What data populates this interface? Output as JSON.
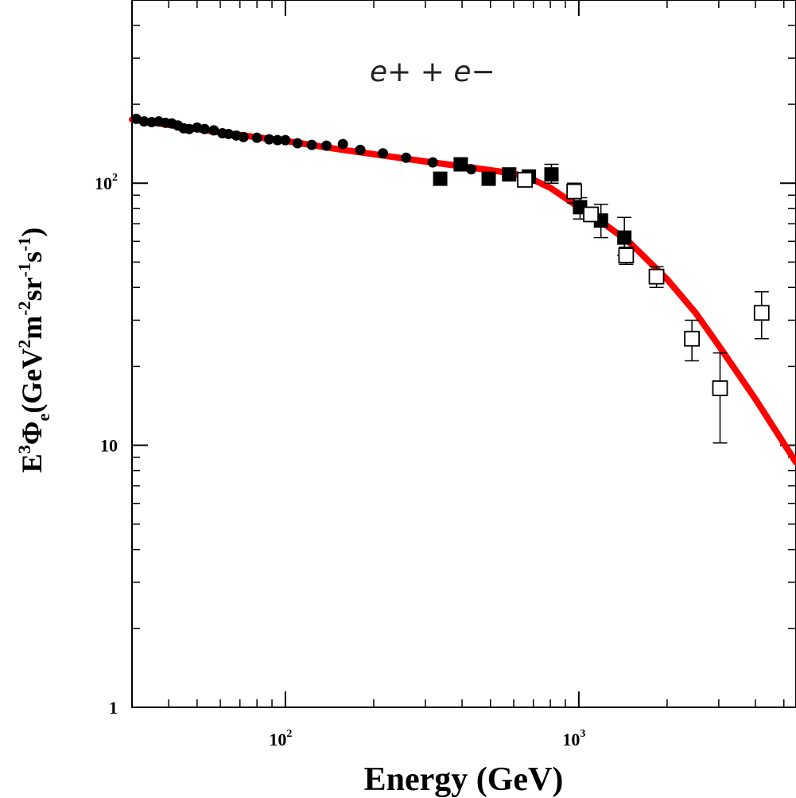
{
  "chart_data": {
    "type": "scatter",
    "title": "",
    "annotation": "e+ + e−",
    "xlabel": "Energy (GeV)",
    "ylabel": {
      "base": "E",
      "sup1": "3",
      "phi": "Φ",
      "sub": "e",
      "units_open": "(GeV",
      "sup2": "2",
      "m": "m",
      "sup3": "-2",
      "sr": "sr",
      "sup4": "-1",
      "s": "s",
      "sup5": "-1",
      "units_close": ")"
    },
    "x_scale": "log",
    "y_scale": "log",
    "xlim": [
      30,
      5500
    ],
    "ylim": [
      1,
      500
    ],
    "x_ticks": [
      {
        "value": 100,
        "base": "10",
        "exp": "2"
      },
      {
        "value": 1000,
        "base": "10",
        "exp": "3"
      }
    ],
    "y_ticks": [
      {
        "value": 1,
        "label": "1"
      },
      {
        "value": 10,
        "label": "10"
      },
      {
        "value": 100,
        "base": "10",
        "exp": "2"
      }
    ],
    "series": [
      {
        "name": "model",
        "style": "line",
        "color": "#ff0000",
        "points": [
          [
            30,
            175
          ],
          [
            40,
            167
          ],
          [
            60,
            156
          ],
          [
            100,
            145
          ],
          [
            150,
            135
          ],
          [
            200,
            129
          ],
          [
            300,
            121
          ],
          [
            400,
            116
          ],
          [
            500,
            112
          ],
          [
            600,
            109
          ],
          [
            700,
            103
          ],
          [
            800,
            96
          ],
          [
            1000,
            81
          ],
          [
            1200,
            71
          ],
          [
            1500,
            59
          ],
          [
            2000,
            43
          ],
          [
            2500,
            32
          ],
          [
            3000,
            24
          ],
          [
            4000,
            15
          ],
          [
            5500,
            8.6
          ]
        ]
      },
      {
        "name": "filled circles",
        "style": "marker",
        "marker": "filled-circle",
        "color": "#000000",
        "points": [
          [
            31,
            176
          ],
          [
            33,
            172
          ],
          [
            35,
            171
          ],
          [
            37,
            172
          ],
          [
            39,
            170
          ],
          [
            41,
            169
          ],
          [
            43,
            166
          ],
          [
            45,
            162
          ],
          [
            47,
            161
          ],
          [
            50,
            163
          ],
          [
            53,
            161
          ],
          [
            57,
            159
          ],
          [
            61,
            155
          ],
          [
            64,
            154
          ],
          [
            68,
            152
          ],
          [
            72,
            150
          ],
          [
            80,
            149
          ],
          [
            88,
            147
          ],
          [
            94,
            146
          ],
          [
            100,
            146
          ],
          [
            110,
            142
          ],
          [
            123,
            140
          ],
          [
            138,
            139
          ],
          [
            157,
            141
          ],
          [
            180,
            134
          ],
          [
            215,
            130
          ],
          [
            258,
            125
          ],
          [
            318,
            120
          ],
          [
            398,
            117
          ],
          [
            430,
            113
          ]
        ]
      },
      {
        "name": "filled squares",
        "style": "marker",
        "marker": "filled-square",
        "color": "#000000",
        "points": [
          {
            "x": 337,
            "y": 104
          },
          {
            "x": 396,
            "y": 118
          },
          {
            "x": 493,
            "y": 104
          },
          {
            "x": 579,
            "y": 108
          },
          {
            "x": 676,
            "y": 106
          },
          {
            "x": 807,
            "y": 108,
            "yerr": [
              100,
              118
            ]
          },
          {
            "x": 1010,
            "y": 81,
            "yerr": [
              73,
              88
            ]
          },
          {
            "x": 1190,
            "y": 72,
            "yerr": [
              62,
              83
            ]
          },
          {
            "x": 1430,
            "y": 62,
            "yerr": [
              53,
              74
            ]
          }
        ]
      },
      {
        "name": "open squares",
        "style": "marker",
        "marker": "open-square",
        "color": "#000000",
        "points": [
          {
            "x": 655,
            "y": 103
          },
          {
            "x": 965,
            "y": 93,
            "yerr": [
              84,
              100
            ]
          },
          {
            "x": 1100,
            "y": 76
          },
          {
            "x": 1450,
            "y": 53,
            "yerr": [
              49,
              57
            ]
          },
          {
            "x": 1840,
            "y": 44,
            "yerr": [
              40,
              48
            ]
          },
          {
            "x": 2430,
            "y": 25.5,
            "yerr": [
              21,
              30
            ]
          },
          {
            "x": 3030,
            "y": 16.5,
            "yerr": [
              10.2,
              22.5
            ]
          },
          {
            "x": 4200,
            "y": 32,
            "yerr": [
              25.5,
              38.5
            ]
          }
        ]
      }
    ]
  }
}
